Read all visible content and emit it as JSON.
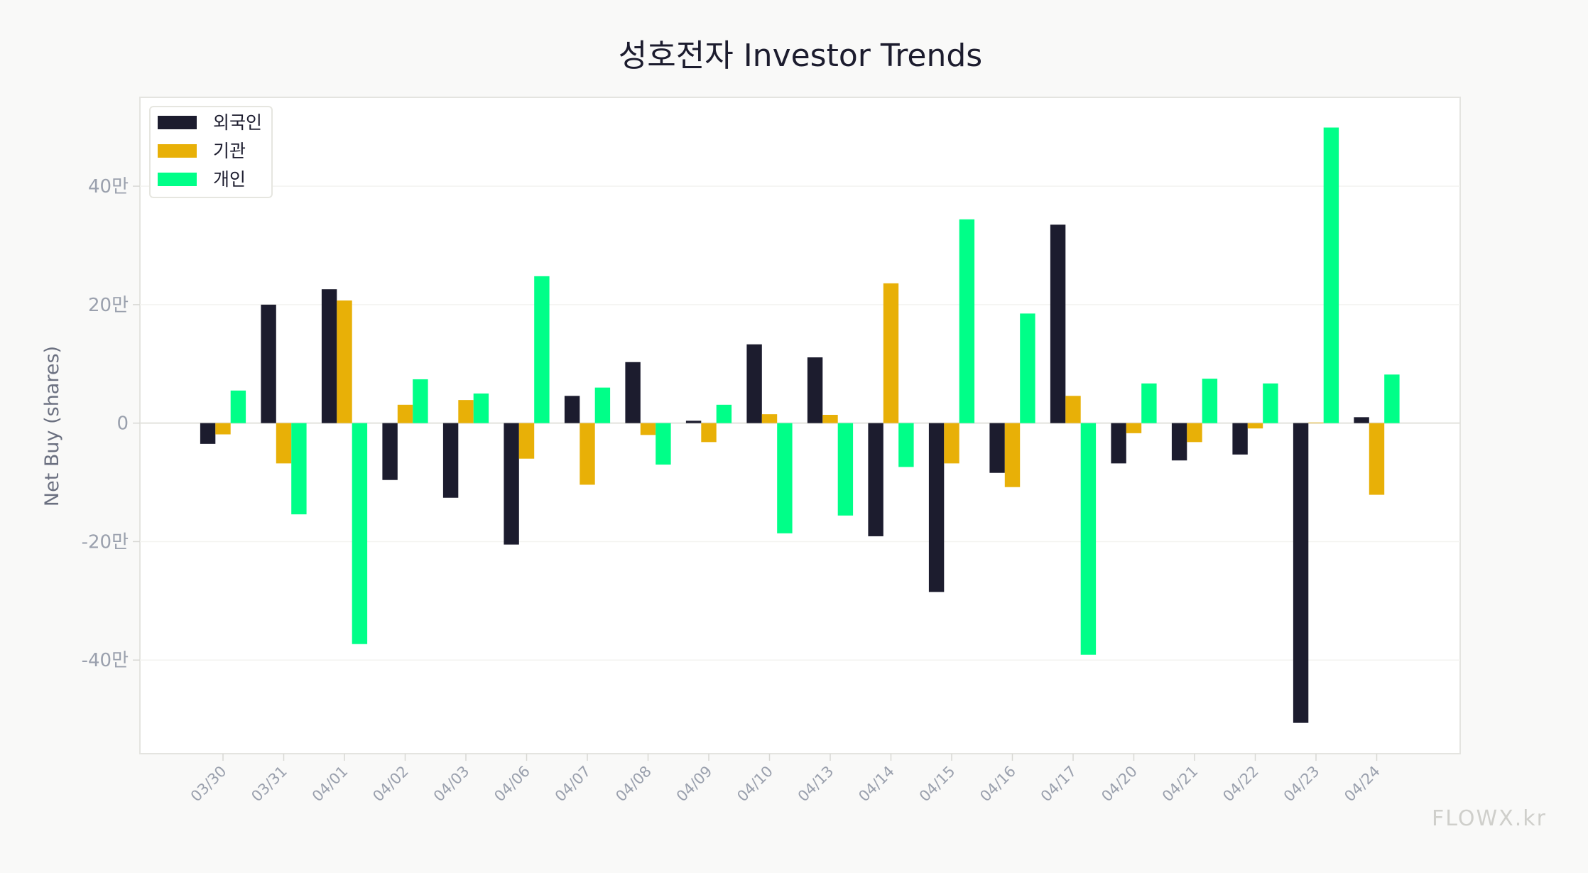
{
  "chart_data": {
    "type": "bar",
    "title": "성호전자 Investor Trends",
    "xlabel": "",
    "ylabel": "Net Buy (shares)",
    "ylim": [
      -55.8,
      55
    ],
    "y_unit": "만",
    "yticks": [
      -40,
      -20,
      0,
      20,
      40
    ],
    "ytick_labels": [
      "-40만",
      "-20만",
      "0",
      "20만",
      "40만"
    ],
    "grid": true,
    "legend_position": "top-left",
    "categories": [
      "03/30",
      "03/31",
      "04/01",
      "04/02",
      "04/03",
      "04/06",
      "04/07",
      "04/08",
      "04/09",
      "04/10",
      "04/13",
      "04/14",
      "04/15",
      "04/16",
      "04/17",
      "04/20",
      "04/21",
      "04/22",
      "04/23",
      "04/24"
    ],
    "series": [
      {
        "name": "외국인",
        "color": "#1c1c2e",
        "values": [
          -3.5,
          20.0,
          22.6,
          -9.6,
          -12.6,
          -20.5,
          4.6,
          10.3,
          0.4,
          13.3,
          11.1,
          -19.1,
          -28.5,
          -8.4,
          33.5,
          -6.8,
          -6.3,
          -5.3,
          -50.6,
          1.0
        ]
      },
      {
        "name": "기관",
        "color": "#e8b007",
        "values": [
          -1.9,
          -6.8,
          20.7,
          3.1,
          3.9,
          -6.0,
          -10.4,
          -2.0,
          -3.2,
          1.5,
          1.4,
          23.6,
          -6.8,
          -10.8,
          4.6,
          -1.7,
          -3.2,
          -0.9,
          0.1,
          -12.1
        ]
      },
      {
        "name": "개인",
        "color": "#00ff88",
        "values": [
          5.5,
          -15.4,
          -37.3,
          7.4,
          5.0,
          24.8,
          6.0,
          -7.0,
          3.1,
          -18.6,
          -15.6,
          -7.4,
          34.4,
          18.5,
          -39.1,
          6.7,
          7.5,
          6.7,
          49.9,
          8.2
        ]
      }
    ]
  },
  "watermark": "FLOWX.kr"
}
